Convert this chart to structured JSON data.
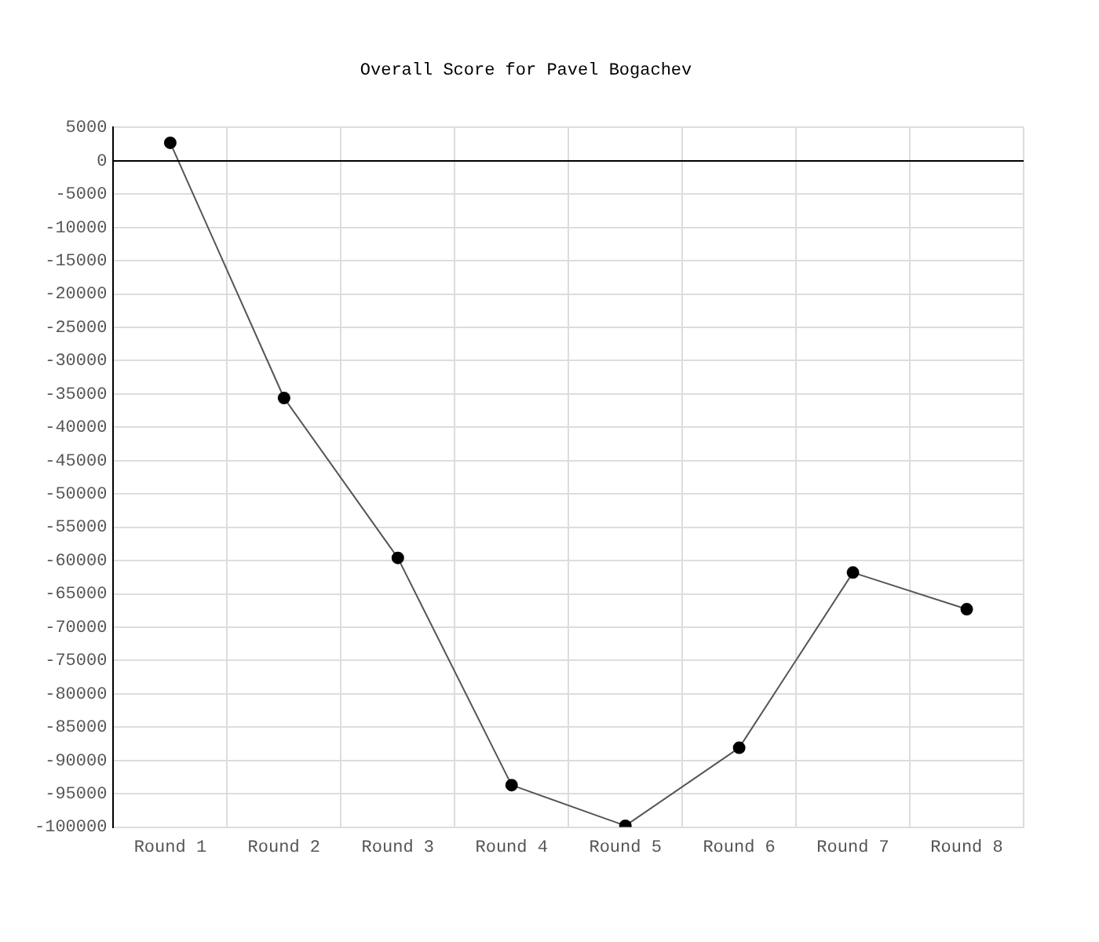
{
  "chart_data": {
    "type": "line",
    "title": "Overall Score for Pavel Bogachev",
    "categories": [
      "Round 1",
      "Round 2",
      "Round 3",
      "Round 4",
      "Round 5",
      "Round 6",
      "Round 7",
      "Round 8"
    ],
    "series": [
      {
        "color": "#000000",
        "values": [
          2700,
          -35600,
          -59600,
          -93700,
          -99800,
          -88100,
          -61800,
          -67300
        ]
      }
    ],
    "ylim": [
      -100000,
      5000
    ],
    "yticks": [
      5000,
      0,
      -5000,
      -10000,
      -15000,
      -20000,
      -25000,
      -30000,
      -35000,
      -40000,
      -45000,
      -50000,
      -55000,
      -60000,
      -65000,
      -70000,
      -75000,
      -80000,
      -85000,
      -90000,
      -95000,
      -100000
    ],
    "ref_lines": [
      {
        "axis": "y",
        "value": 0,
        "color": "#000000"
      }
    ],
    "grid": true,
    "legend": false,
    "marker": "circle",
    "line_style": "solid"
  }
}
